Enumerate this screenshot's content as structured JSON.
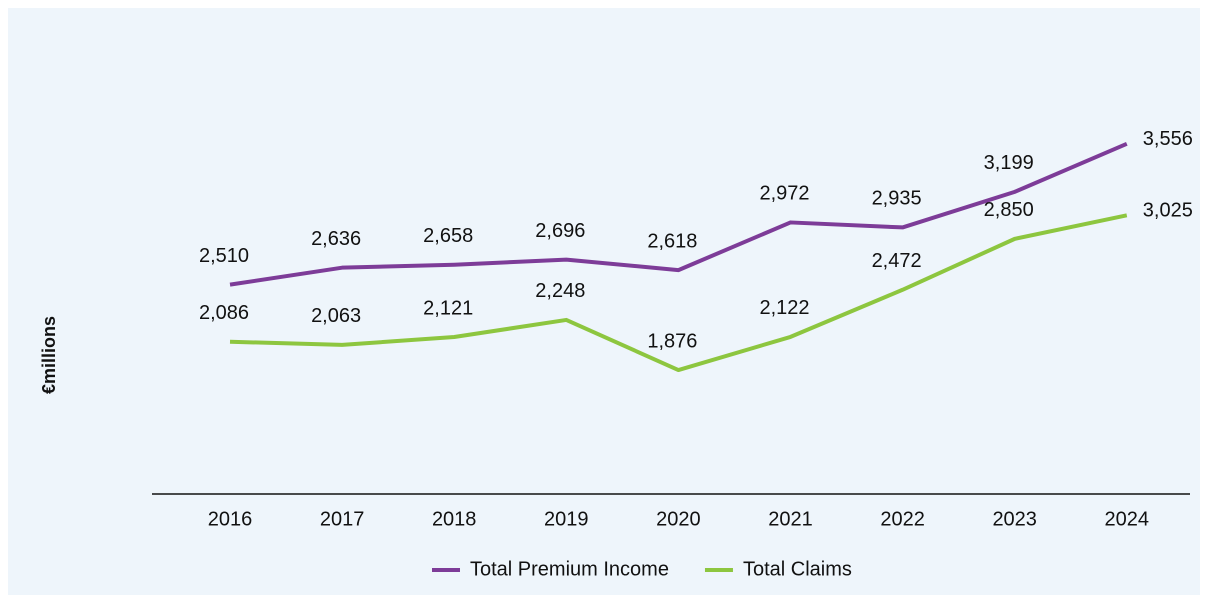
{
  "chart_data": {
    "type": "line",
    "y_label": "€millions",
    "categories": [
      "2016",
      "2017",
      "2018",
      "2019",
      "2020",
      "2021",
      "2022",
      "2023",
      "2024"
    ],
    "series": [
      {
        "name": "Total Premium Income",
        "color": "#7d3c98",
        "values": [
          2510,
          2636,
          2658,
          2696,
          2618,
          2972,
          2935,
          3199,
          3556
        ],
        "value_labels": [
          "2,510",
          "2,636",
          "2,658",
          "2,696",
          "2,618",
          "2,972",
          "2,935",
          "3,199",
          "3,556"
        ]
      },
      {
        "name": "Total Claims",
        "color": "#8dc63f",
        "values": [
          2086,
          2063,
          2121,
          2248,
          1876,
          2122,
          2472,
          2850,
          3025
        ],
        "value_labels": [
          "2,086",
          "2,063",
          "2,121",
          "2,248",
          "1,876",
          "2,122",
          "2,472",
          "2,850",
          "3,025"
        ]
      }
    ],
    "ylim": [
      1000,
      4000
    ],
    "legend": "bottom"
  }
}
